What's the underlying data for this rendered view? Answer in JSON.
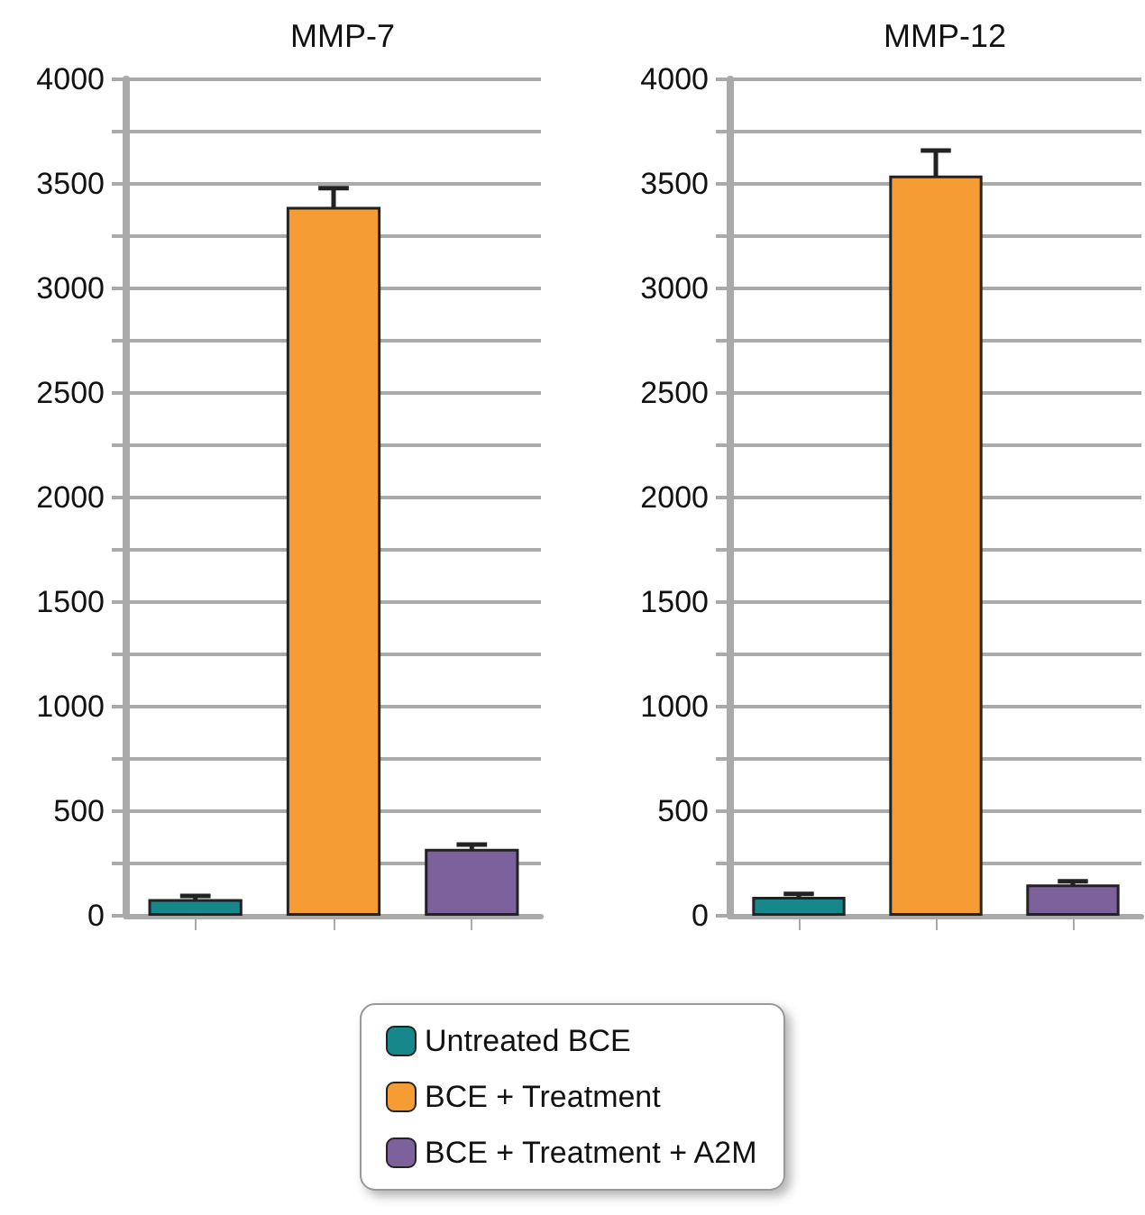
{
  "chart_data": [
    {
      "type": "bar",
      "title": "MMP-7",
      "categories": [
        null,
        null,
        null
      ],
      "series": [
        {
          "name": "Untreated BCE",
          "color": "#16878a",
          "values": [
            80,
            null,
            null
          ],
          "errors": [
            15,
            null,
            null
          ]
        },
        {
          "name": "BCE + Treatment",
          "color": "#f59c34",
          "values": [
            null,
            3390,
            null
          ],
          "errors": [
            null,
            90,
            null
          ]
        },
        {
          "name": "BCE + Treatment + A2M",
          "color": "#7d619c",
          "values": [
            null,
            null,
            320
          ],
          "errors": [
            null,
            null,
            20
          ]
        }
      ],
      "ylim": [
        0,
        4000
      ],
      "yticks": [
        0,
        {
          "value": 250,
          "label": null
        },
        500,
        {
          "value": 750,
          "label": null
        },
        1000,
        {
          "value": 1250,
          "label": null
        },
        1500,
        {
          "value": 1750,
          "label": null
        },
        2000,
        {
          "value": 2250,
          "label": null
        },
        2500,
        {
          "value": 2750,
          "label": null
        },
        3000,
        {
          "value": 3250,
          "label": null
        },
        3500,
        {
          "value": 3750,
          "label": null
        },
        4000
      ],
      "grid": "y",
      "legend": "bottom"
    },
    {
      "type": "bar",
      "title": "MMP-12",
      "categories": [
        null,
        null,
        null
      ],
      "series": [
        {
          "color": "#16878a",
          "values": [
            90,
            null,
            null
          ],
          "errors": [
            15,
            null,
            null
          ]
        },
        {
          "color": "#f59c34",
          "values": [
            null,
            3540,
            null
          ],
          "errors": [
            null,
            120,
            null
          ]
        },
        {
          "color": "#7d619c",
          "values": [
            null,
            null,
            150
          ],
          "errors": [
            null,
            null,
            15
          ]
        }
      ],
      "ylim": [
        0,
        4000
      ],
      "yticks": [
        0,
        {
          "value": 250,
          "label": null
        },
        500,
        {
          "value": 750,
          "label": null
        },
        1000,
        {
          "value": 1250,
          "label": null
        },
        1500,
        {
          "value": 1750,
          "label": null
        },
        2000,
        {
          "value": 2250,
          "label": null
        },
        2500,
        {
          "value": 2750,
          "label": null
        },
        3000,
        {
          "value": 3250,
          "label": null
        },
        3500,
        {
          "value": 3750,
          "label": null
        },
        4000
      ],
      "grid": "y",
      "legend": false
    }
  ]
}
